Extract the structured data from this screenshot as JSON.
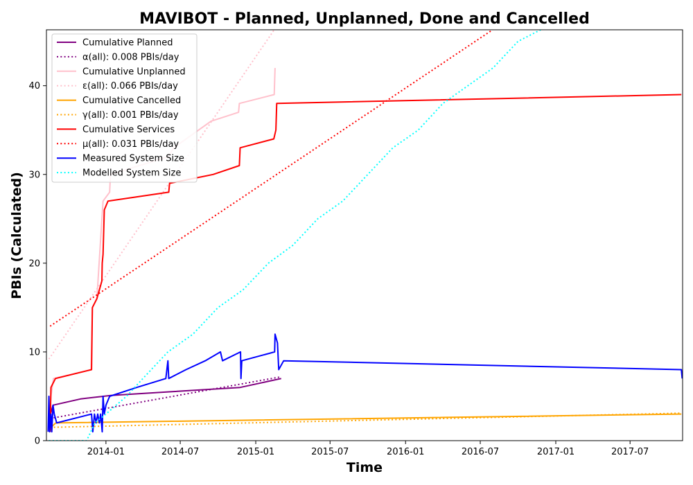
{
  "chart_data": {
    "type": "line",
    "title": "MAVIBOT - Planned, Unplanned, Done  and Cancelled",
    "xlabel": "Time",
    "ylabel": "PBIs (Calculated)",
    "xlim": [
      "2013-08-09",
      "2017-11-06"
    ],
    "ylim": [
      0,
      46.3
    ],
    "x_ticks": [
      {
        "date": "2014-01-01",
        "label": "2014-01"
      },
      {
        "date": "2014-07-01",
        "label": "2014-07"
      },
      {
        "date": "2015-01-01",
        "label": "2015-01"
      },
      {
        "date": "2015-07-01",
        "label": "2015-07"
      },
      {
        "date": "2016-01-01",
        "label": "2016-01"
      },
      {
        "date": "2016-07-01",
        "label": "2016-07"
      },
      {
        "date": "2017-01-01",
        "label": "2017-01"
      },
      {
        "date": "2017-07-01",
        "label": "2017-07"
      }
    ],
    "y_ticks": [
      0,
      10,
      20,
      30,
      40
    ],
    "grid": false,
    "legend_position": "top-left",
    "series": [
      {
        "name": "Cumulative Planned",
        "color": "#800080",
        "style": "solid",
        "points": [
          [
            "2013-08-18",
            1
          ],
          [
            "2013-08-19",
            3
          ],
          [
            "2013-08-25",
            4
          ],
          [
            "2013-10-31",
            4.7
          ],
          [
            "2014-01-13",
            5.1
          ],
          [
            "2014-06-01",
            5.5
          ],
          [
            "2014-11-24",
            6
          ],
          [
            "2015-03-04",
            7
          ]
        ]
      },
      {
        "name": "α(all): 0.008 PBIs/day",
        "color": "#800080",
        "style": "dotted",
        "points": [
          [
            "2013-08-18",
            2.5
          ],
          [
            "2015-03-04",
            7.2
          ]
        ]
      },
      {
        "name": "Cumulative Unplanned",
        "color": "#ffc0cb",
        "style": "solid",
        "points": [
          [
            "2013-08-15",
            1
          ],
          [
            "2013-08-20",
            5
          ],
          [
            "2013-08-26",
            7
          ],
          [
            "2013-11-26",
            8
          ],
          [
            "2013-11-29",
            15
          ],
          [
            "2013-12-10",
            16
          ],
          [
            "2013-12-25",
            27
          ],
          [
            "2014-01-10",
            28
          ],
          [
            "2014-01-12",
            30
          ],
          [
            "2014-06-02",
            32
          ],
          [
            "2014-06-15",
            33
          ],
          [
            "2014-09-14",
            36
          ],
          [
            "2014-11-20",
            37
          ],
          [
            "2014-11-22",
            38
          ],
          [
            "2015-02-15",
            39
          ],
          [
            "2015-02-17",
            42
          ]
        ]
      },
      {
        "name": "ε(all): 0.066 PBIs/day",
        "color": "#ffc0cb",
        "style": "dotted",
        "points": [
          [
            "2013-08-15",
            9.2
          ],
          [
            "2015-02-15",
            46.3
          ]
        ]
      },
      {
        "name": "Cumulative Cancelled",
        "color": "#ffa500",
        "style": "solid",
        "points": [
          [
            "2013-08-18",
            1
          ],
          [
            "2013-08-20",
            1.5
          ],
          [
            "2013-09-01",
            2
          ],
          [
            "2017-11-03",
            3
          ]
        ]
      },
      {
        "name": "γ(all): 0.001 PBIs/day",
        "color": "#ffa500",
        "style": "dotted",
        "points": [
          [
            "2013-08-18",
            1.5
          ],
          [
            "2017-11-03",
            3.1
          ]
        ]
      },
      {
        "name": "Cumulative Services",
        "color": "#ff0000",
        "style": "solid",
        "points": [
          [
            "2013-08-18",
            1
          ],
          [
            "2013-08-20",
            6
          ],
          [
            "2013-08-31",
            7
          ],
          [
            "2013-11-27",
            8
          ],
          [
            "2013-11-29",
            15
          ],
          [
            "2013-12-10",
            16
          ],
          [
            "2013-12-16",
            17
          ],
          [
            "2013-12-22",
            18
          ],
          [
            "2013-12-23",
            20
          ],
          [
            "2013-12-25",
            21
          ],
          [
            "2013-12-28",
            26
          ],
          [
            "2014-01-06",
            27
          ],
          [
            "2014-06-03",
            28
          ],
          [
            "2014-06-05",
            29
          ],
          [
            "2014-09-19",
            30
          ],
          [
            "2014-11-22",
            31
          ],
          [
            "2014-11-24",
            33
          ],
          [
            "2015-02-14",
            34
          ],
          [
            "2015-02-19",
            35
          ],
          [
            "2015-02-21",
            38
          ],
          [
            "2017-11-03",
            39
          ]
        ]
      },
      {
        "name": "μ(all): 0.031 PBIs/day",
        "color": "#ff0000",
        "style": "dotted",
        "points": [
          [
            "2013-08-18",
            12.9
          ],
          [
            "2016-07-31",
            46.3
          ]
        ]
      },
      {
        "name": "Measured System Size",
        "color": "#0000ff",
        "style": "solid",
        "points": [
          [
            "2013-08-13",
            1
          ],
          [
            "2013-08-15",
            5
          ],
          [
            "2013-08-17",
            1
          ],
          [
            "2013-08-20",
            3
          ],
          [
            "2013-08-22",
            1
          ],
          [
            "2013-08-25",
            4
          ],
          [
            "2013-08-28",
            3
          ],
          [
            "2013-09-03",
            2
          ],
          [
            "2013-11-27",
            3
          ],
          [
            "2013-11-30",
            1
          ],
          [
            "2013-12-04",
            3
          ],
          [
            "2013-12-08",
            2
          ],
          [
            "2013-12-12",
            3
          ],
          [
            "2013-12-16",
            2
          ],
          [
            "2013-12-19",
            3
          ],
          [
            "2013-12-21",
            2
          ],
          [
            "2013-12-23",
            1
          ],
          [
            "2013-12-25",
            5
          ],
          [
            "2013-12-28",
            3
          ],
          [
            "2014-01-01",
            4
          ],
          [
            "2014-01-10",
            5
          ],
          [
            "2014-03-17",
            6
          ],
          [
            "2014-05-27",
            7
          ],
          [
            "2014-06-01",
            9
          ],
          [
            "2014-06-03",
            7
          ],
          [
            "2014-07-15",
            8
          ],
          [
            "2014-08-31",
            9
          ],
          [
            "2014-10-07",
            10
          ],
          [
            "2014-10-12",
            9
          ],
          [
            "2014-11-25",
            10
          ],
          [
            "2014-11-26",
            7
          ],
          [
            "2014-11-28",
            9
          ],
          [
            "2015-02-16",
            10
          ],
          [
            "2015-02-17",
            12
          ],
          [
            "2015-02-23",
            11
          ],
          [
            "2015-02-26",
            8
          ],
          [
            "2015-03-10",
            9
          ],
          [
            "2017-11-03",
            8
          ],
          [
            "2017-11-05",
            7
          ]
        ]
      },
      {
        "name": "Modelled System Size",
        "color": "#00ffff",
        "style": "dotted",
        "points": [
          [
            "2013-08-15",
            0
          ],
          [
            "2013-11-15",
            0
          ],
          [
            "2013-11-25",
            1
          ],
          [
            "2013-12-05",
            2
          ],
          [
            "2014-01-01",
            3
          ],
          [
            "2014-02-20",
            5
          ],
          [
            "2014-04-01",
            7
          ],
          [
            "2014-06-01",
            10
          ],
          [
            "2014-08-01",
            12
          ],
          [
            "2014-10-01",
            15
          ],
          [
            "2014-12-01",
            17
          ],
          [
            "2015-02-01",
            20
          ],
          [
            "2015-04-01",
            22
          ],
          [
            "2015-06-01",
            25
          ],
          [
            "2015-08-01",
            27
          ],
          [
            "2015-10-01",
            30
          ],
          [
            "2015-12-01",
            33
          ],
          [
            "2016-02-01",
            35
          ],
          [
            "2016-04-01",
            38
          ],
          [
            "2016-06-01",
            40
          ],
          [
            "2016-08-01",
            42
          ],
          [
            "2016-10-01",
            45
          ],
          [
            "2016-11-25",
            46.3
          ]
        ]
      }
    ]
  }
}
